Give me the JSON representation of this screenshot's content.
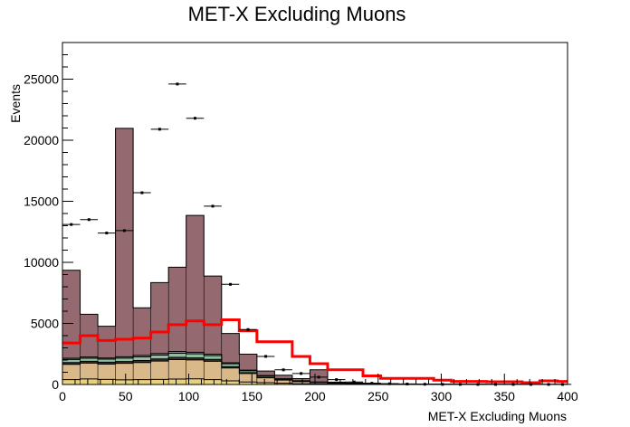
{
  "chart_data": {
    "type": "bar",
    "title": "MET-X Excluding Muons",
    "xlabel": "MET-X Excluding Muons",
    "ylabel": "Events",
    "xlim": [
      0,
      400
    ],
    "ylim": [
      0,
      28000
    ],
    "x_ticks": [
      0,
      50,
      100,
      150,
      200,
      250,
      300,
      350,
      400
    ],
    "y_ticks": [
      0,
      5000,
      10000,
      15000,
      20000,
      25000
    ],
    "bin_edges": [
      0,
      14,
      28,
      42,
      56,
      70,
      84,
      98,
      112,
      126,
      140,
      154,
      168,
      182,
      196,
      210,
      224,
      238,
      252,
      266,
      280,
      294,
      308,
      322,
      336,
      350,
      364,
      378,
      392,
      400
    ],
    "stack": [
      {
        "color": "#e8d17a",
        "values": [
          400,
          450,
          420,
          380,
          400,
          420,
          440,
          460,
          400,
          300,
          200,
          150,
          100,
          60,
          40,
          30,
          20,
          15,
          10,
          8,
          6,
          5,
          4,
          3,
          2,
          2,
          1,
          1,
          1
        ]
      },
      {
        "color": "#d9b98a",
        "values": [
          1250,
          1300,
          1250,
          1350,
          1400,
          1500,
          1600,
          1550,
          1500,
          1050,
          700,
          400,
          260,
          170,
          110,
          70,
          40,
          25,
          15,
          10,
          7,
          5,
          4,
          3,
          2,
          2,
          1,
          1,
          1
        ]
      },
      {
        "color": "#3b2f2f",
        "values": [
          150,
          150,
          150,
          150,
          160,
          170,
          180,
          170,
          160,
          110,
          70,
          45,
          30,
          20,
          15,
          10,
          6,
          4,
          3,
          2,
          1,
          1,
          1,
          1,
          1,
          1,
          1,
          1,
          1
        ]
      },
      {
        "color": "#8fbf9f",
        "values": [
          250,
          250,
          250,
          280,
          300,
          320,
          340,
          330,
          300,
          230,
          150,
          95,
          60,
          40,
          25,
          15,
          10,
          6,
          4,
          3,
          2,
          2,
          1,
          1,
          1,
          1,
          1,
          1,
          1
        ]
      },
      {
        "color": "#7a8c8c",
        "values": [
          100,
          100,
          100,
          110,
          120,
          130,
          140,
          130,
          120,
          90,
          60,
          40,
          25,
          15,
          10,
          8,
          5,
          3,
          2,
          2,
          1,
          1,
          1,
          1,
          1,
          1,
          1,
          1,
          1
        ]
      },
      {
        "color": "#946a70",
        "values": [
          7200,
          3500,
          2600,
          18700,
          3900,
          5800,
          6900,
          11200,
          6400,
          2400,
          1300,
          370,
          280,
          180,
          1000,
          60,
          50,
          40,
          30,
          20,
          15,
          10,
          8,
          6,
          5,
          4,
          3,
          2,
          2
        ]
      }
    ],
    "red_line": {
      "color": "#ff0000",
      "values": [
        3400,
        4000,
        3600,
        3700,
        3800,
        4300,
        4900,
        5200,
        4900,
        5300,
        4400,
        3500,
        3500,
        2300,
        1700,
        1200,
        1200,
        700,
        500,
        500,
        500,
        350,
        250,
        250,
        220,
        220,
        150,
        300,
        250
      ]
    },
    "data_points": {
      "x": [
        7,
        21,
        35,
        49,
        63,
        77,
        91,
        105,
        119,
        133,
        147,
        161,
        175,
        189,
        203,
        217,
        231,
        245,
        259,
        273,
        287,
        301,
        315,
        329,
        343,
        357,
        371,
        385,
        396
      ],
      "y": [
        13100,
        13500,
        12400,
        12600,
        15700,
        20900,
        24600,
        21800,
        14600,
        8200,
        4500,
        2300,
        1200,
        900,
        600,
        400,
        200,
        100,
        60,
        40,
        20,
        10,
        10,
        5,
        5,
        5,
        5,
        5,
        5
      ]
    }
  }
}
